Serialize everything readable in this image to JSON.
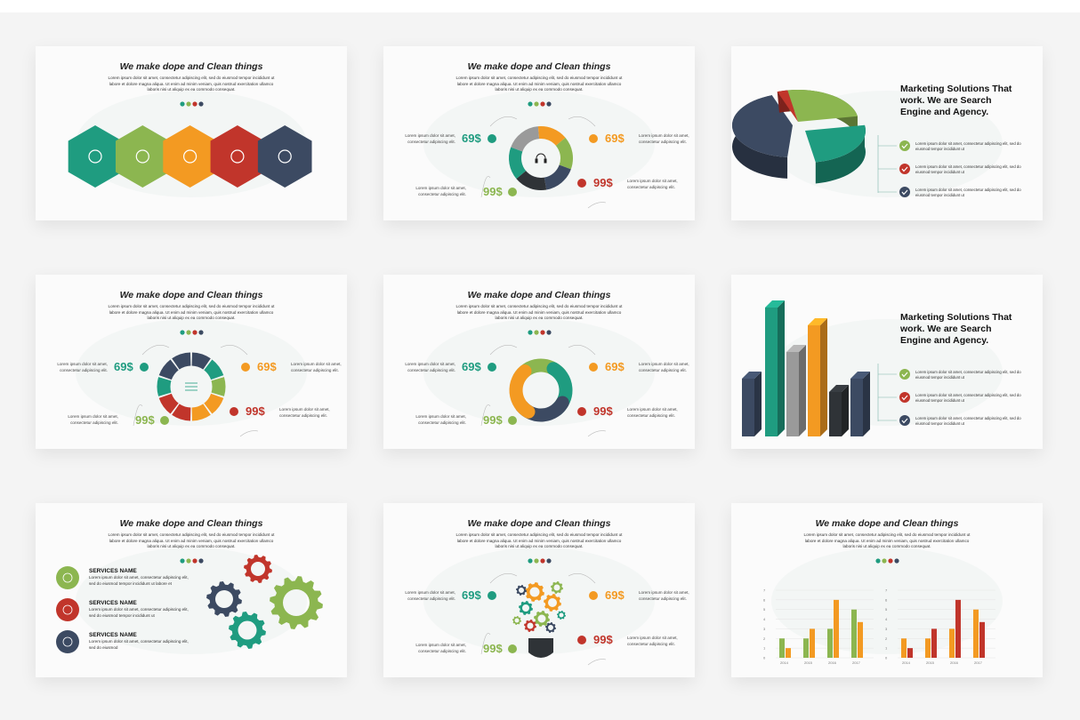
{
  "colors": {
    "teal": "#1f9c80",
    "green": "#8cb650",
    "orange": "#f39a22",
    "red": "#c1352b",
    "navy": "#3c4a62",
    "dark": "#2f3337",
    "gray": "#9a9a9a"
  },
  "slides": [
    {
      "type": "hexagons",
      "title": "We make dope and Clean things",
      "body": "Lorem ipsum dolor sit amet, consectetur adipiscing elit, sed do eiusmod tempor incididunt ut labore et dolore magna aliqua. Ut enim ad minim veniam, quis nostrud exercitation ullamco laboris nisi ut aliquip ex ea commodo consequat.",
      "icons": [
        "graduation-cap-icon",
        "binoculars-icon",
        "scissors-icon",
        "rocket-icon",
        "org-chart-icon"
      ]
    },
    {
      "type": "cycle",
      "title": "We make dope and Clean things",
      "body": "Lorem ipsum dolor sit amet, consectetur adipiscing elit, sed do eiusmod tempor incididunt ut labore et dolore magna aliqua. Ut enim ad minim veniam, quis nostrud exercitation ullamco laboris nisi ut aliquip ex ea commodo consequat.",
      "center_icon": "headphones-icon",
      "prices": [
        {
          "value": "69$",
          "color": "teal",
          "desc": "Lorem ipsum dolor sit amet, consectetur adipiscing elit."
        },
        {
          "value": "69$",
          "color": "orange",
          "desc": "Lorem ipsum dolor sit amet, consectetur adipiscing elit."
        },
        {
          "value": "99$",
          "color": "green",
          "desc": "Lorem ipsum dolor sit amet, consectetur adipiscing elit."
        },
        {
          "value": "99$",
          "color": "red",
          "desc": "Lorem ipsum dolor sit amet, consectetur adipiscing elit."
        }
      ]
    },
    {
      "type": "pie3d",
      "heading": "Marketing Solutions That work. We are Search Engine and Agency.",
      "items": [
        {
          "color": "green",
          "text": "Lorem ipsum dolor sit amet, consectetur adipiscing elit, sed do eiusmod tempor incididunt ut"
        },
        {
          "color": "red",
          "text": "Lorem ipsum dolor sit amet, consectetur adipiscing elit, sed do eiusmod tempor incididunt ut"
        },
        {
          "color": "navy",
          "text": "Lorem ipsum dolor sit amet, consectetur adipiscing elit, sed do eiusmod tempor incididunt ut"
        }
      ]
    },
    {
      "type": "ring",
      "title": "We make dope and Clean things",
      "body": "Lorem ipsum dolor sit amet, consectetur adipiscing elit, sed do eiusmod tempor incididunt ut labore et dolore magna aliqua. Ut enim ad minim veniam, quis nostrud exercitation ullamco laboris nisi ut aliquip ex ea commodo consequat.",
      "center_icon": "sliders-icon",
      "prices": [
        {
          "value": "69$",
          "color": "teal",
          "desc": "Lorem ipsum dolor sit amet, consectetur adipiscing elit."
        },
        {
          "value": "69$",
          "color": "orange",
          "desc": "Lorem ipsum dolor sit amet, consectetur adipiscing elit."
        },
        {
          "value": "99$",
          "color": "green",
          "desc": "Lorem ipsum dolor sit amet, consectetur adipiscing elit."
        },
        {
          "value": "99$",
          "color": "red",
          "desc": "Lorem ipsum dolor sit amet, consectetur adipiscing elit."
        }
      ]
    },
    {
      "type": "swirl",
      "title": "We make dope and Clean things",
      "body": "Lorem ipsum dolor sit amet, consectetur adipiscing elit, sed do eiusmod tempor incididunt ut labore et dolore magna aliqua. Ut enim ad minim veniam, quis nostrud exercitation ullamco laboris nisi ut aliquip ex ea commodo consequat.",
      "prices": [
        {
          "value": "69$",
          "color": "teal",
          "desc": "Lorem ipsum dolor sit amet, consectetur adipiscing elit."
        },
        {
          "value": "69$",
          "color": "orange",
          "desc": "Lorem ipsum dolor sit amet, consectetur adipiscing elit."
        },
        {
          "value": "99$",
          "color": "green",
          "desc": "Lorem ipsum dolor sit amet, consectetur adipiscing elit."
        },
        {
          "value": "99$",
          "color": "red",
          "desc": "Lorem ipsum dolor sit amet, consectetur adipiscing elit."
        }
      ]
    },
    {
      "type": "bars3d",
      "heading": "Marketing Solutions That work. We are Search Engine and Agency.",
      "items": [
        {
          "color": "green",
          "text": "Lorem ipsum dolor sit amet, consectetur adipiscing elit, sed do eiusmod tempor incididunt ut"
        },
        {
          "color": "red",
          "text": "Lorem ipsum dolor sit amet, consectetur adipiscing elit, sed do eiusmod tempor incididunt ut"
        },
        {
          "color": "navy",
          "text": "Lorem ipsum dolor sit amet, consectetur adipiscing elit, sed do eiusmod tempor incididunt ut"
        }
      ]
    },
    {
      "type": "services",
      "title": "We make dope and Clean things",
      "body": "Lorem ipsum dolor sit amet, consectetur adipiscing elit, sed do eiusmod tempor incididunt ut labore et dolore magna aliqua. Ut enim ad minim veniam, quis nostrud exercitation ullamco laboris nisi ut aliquip ex ea commodo consequat.",
      "services": [
        {
          "name": "SERVICES NAME",
          "text": "Lorem ipsum dolor sit amet, consectetur adipiscing elit, sed do eiusmod tempor incididunt ut labore et",
          "color": "green",
          "icon": "plus-circle-icon"
        },
        {
          "name": "SERVICES NAME",
          "text": "Lorem ipsum dolor sit amet, consectetur adipiscing elit, sed do eiusmod tempor incididunt ut",
          "color": "red",
          "icon": "ribbon-star-icon"
        },
        {
          "name": "SERVICES NAME",
          "text": "Lorem ipsum dolor sit amet, consectetur adipiscing elit, sed do eiusmod",
          "color": "navy",
          "icon": "rocket-icon"
        }
      ]
    },
    {
      "type": "bulb",
      "title": "We make dope and Clean things",
      "body": "Lorem ipsum dolor sit amet, consectetur adipiscing elit, sed do eiusmod tempor incididunt ut labore et dolore magna aliqua. Ut enim ad minim veniam, quis nostrud exercitation ullamco laboris nisi ut aliquip ex ea commodo consequat.",
      "prices": [
        {
          "value": "69$",
          "color": "teal",
          "desc": "Lorem ipsum dolor sit amet, consectetur adipiscing elit."
        },
        {
          "value": "69$",
          "color": "orange",
          "desc": "Lorem ipsum dolor sit amet, consectetur adipiscing elit."
        },
        {
          "value": "99$",
          "color": "green",
          "desc": "Lorem ipsum dolor sit amet, consectetur adipiscing elit."
        },
        {
          "value": "99$",
          "color": "red",
          "desc": "Lorem ipsum dolor sit amet, consectetur adipiscing elit."
        }
      ]
    },
    {
      "type": "charts",
      "title": "We make dope and Clean things",
      "body": "Lorem ipsum dolor sit amet, consectetur adipiscing elit, sed do eiusmod tempor incididunt ut labore et dolore magna aliqua. Ut enim ad minim veniam, quis nostrud exercitation ullamco laboris nisi ut aliquip ex ea commodo consequat."
    }
  ],
  "chart_data": [
    {
      "type": "bar",
      "categories": [
        "2014",
        "2015",
        "2016",
        "2017"
      ],
      "series": [
        {
          "color": "#8cb650",
          "values": [
            2,
            2,
            3,
            5
          ]
        },
        {
          "color": "#f39a22",
          "values": [
            1,
            3,
            6,
            3.7
          ]
        }
      ],
      "ylim": [
        0,
        7
      ],
      "yticks": [
        "0",
        "1",
        "2",
        "3",
        "4",
        "5",
        "6",
        "7"
      ],
      "grid": true
    },
    {
      "type": "bar",
      "categories": [
        "2014",
        "2015",
        "2016",
        "2017"
      ],
      "series": [
        {
          "color": "#f39a22",
          "values": [
            2,
            2,
            3,
            5
          ]
        },
        {
          "color": "#c1352b",
          "values": [
            1,
            3,
            6,
            3.7
          ]
        }
      ],
      "ylim": [
        0,
        7
      ],
      "yticks": [
        "0",
        "1",
        "2",
        "3",
        "4",
        "5",
        "6",
        "7"
      ],
      "grid": true
    }
  ]
}
